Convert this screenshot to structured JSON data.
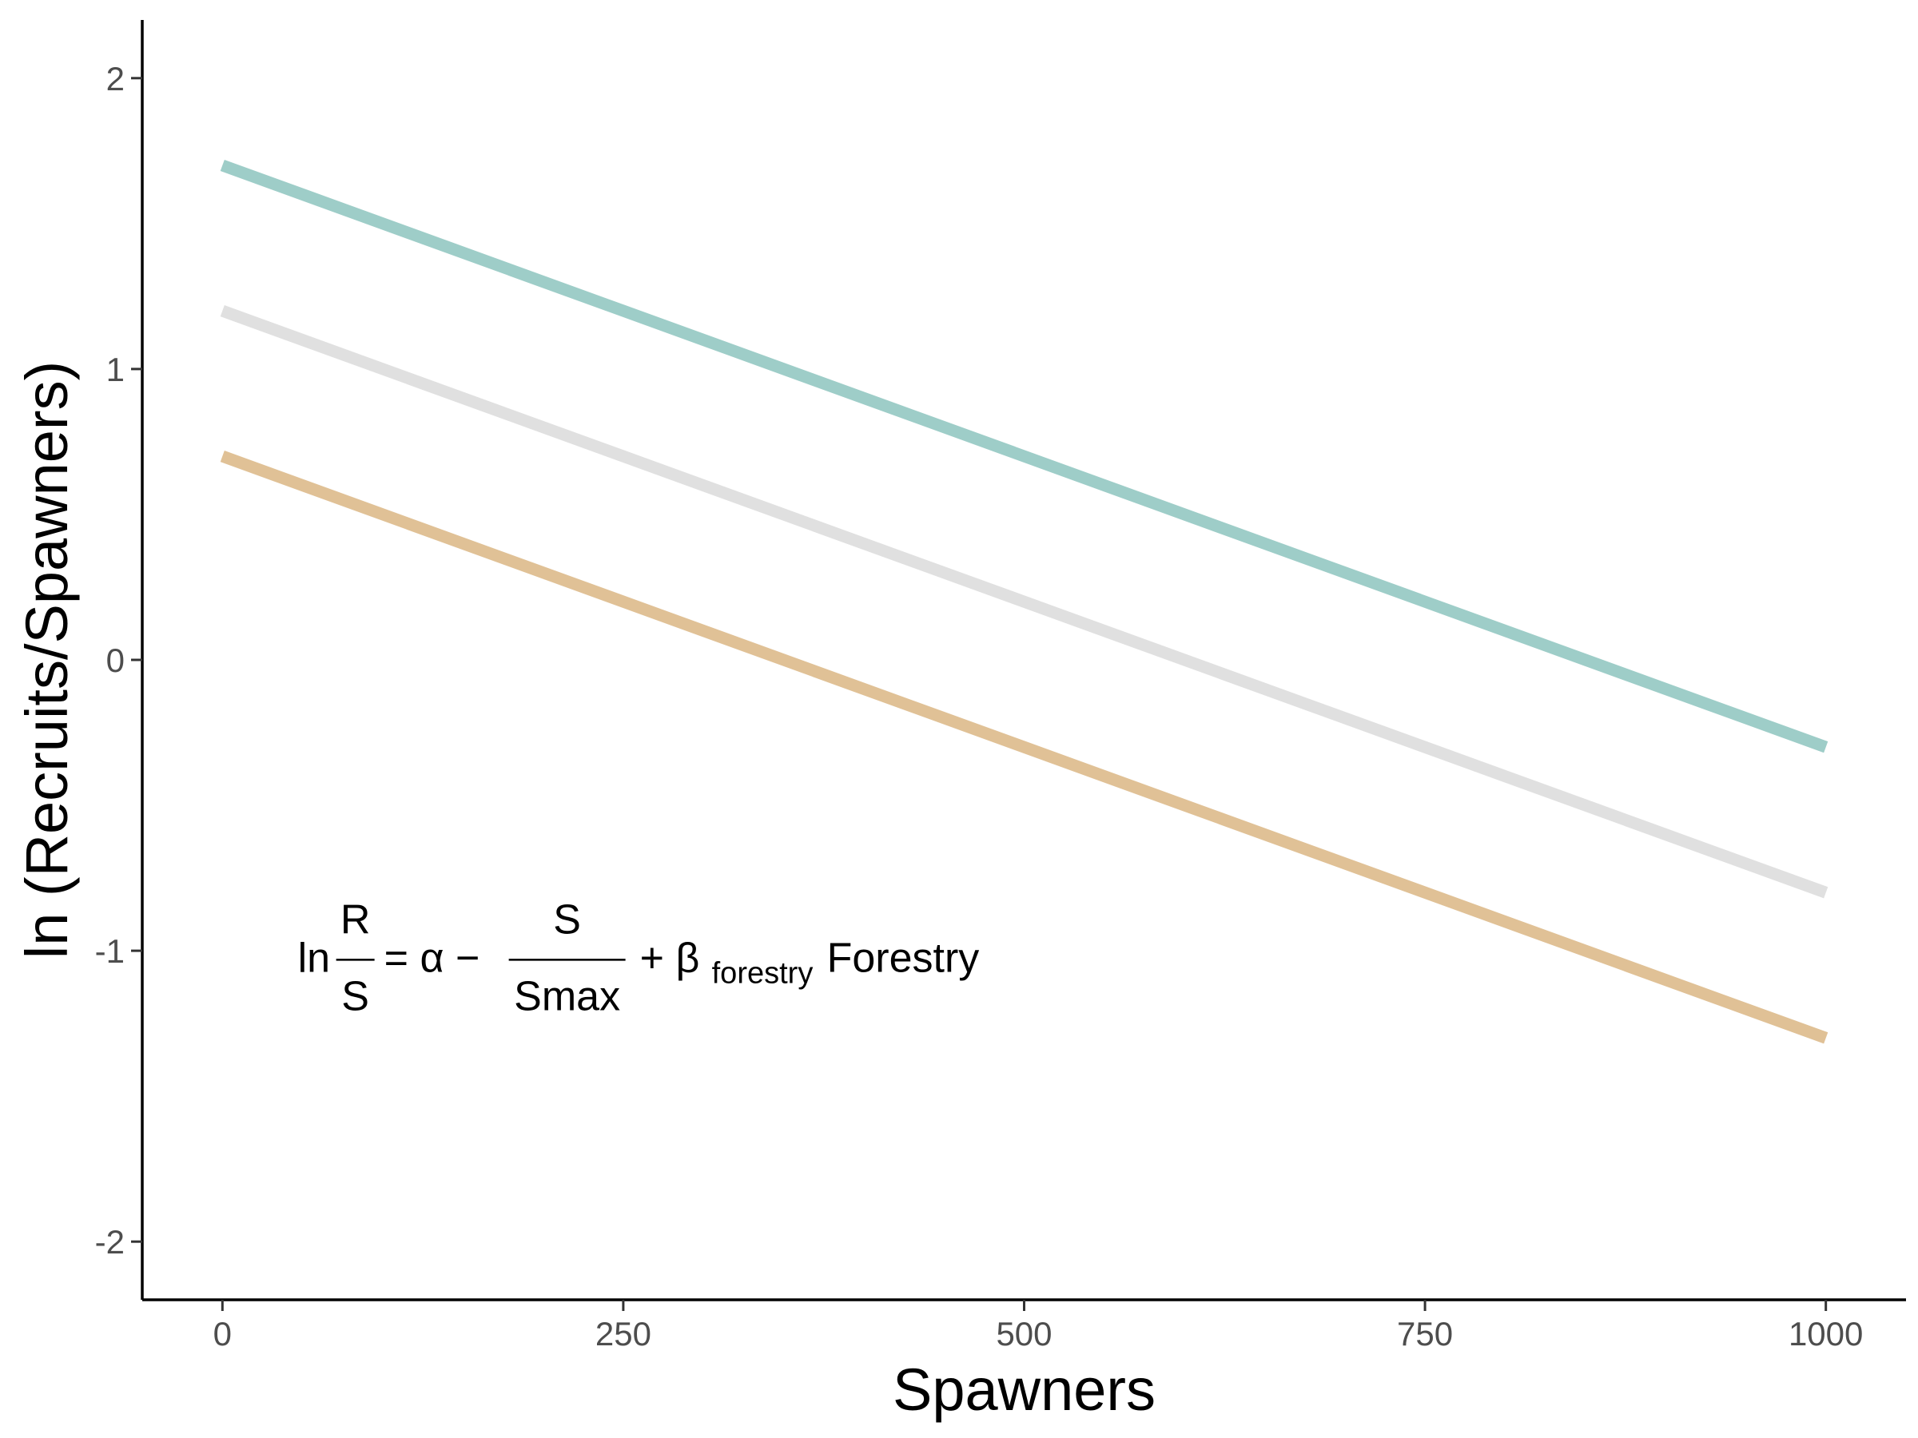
{
  "chart_data": {
    "type": "line",
    "xlabel": "Spawners",
    "ylabel": "ln (Recruits/Spawners)",
    "xlim": [
      -50,
      1050
    ],
    "ylim": [
      -2.2,
      2.2
    ],
    "x_ticks": [
      0,
      250,
      500,
      750,
      1000
    ],
    "y_ticks": [
      -2,
      -1,
      0,
      1,
      2
    ],
    "x_tick_labels": [
      "0",
      "250",
      "500",
      "750",
      "1000"
    ],
    "y_tick_labels": [
      "-2",
      "-1",
      "0",
      "1",
      "2"
    ],
    "grid": false,
    "series": [
      {
        "color": "#9ecdc8",
        "x": [
          0,
          1000
        ],
        "y": [
          1.7,
          -0.3
        ]
      },
      {
        "color": "#e0e0e0",
        "x": [
          0,
          1000
        ],
        "y": [
          1.2,
          -0.8
        ]
      },
      {
        "color": "#e0c196",
        "x": [
          0,
          1000
        ],
        "y": [
          0.7,
          -1.3
        ]
      }
    ],
    "annotation": {
      "ln": "ln",
      "frac1_num": "R",
      "frac1_den": "S",
      "middle": "= α −",
      "frac2_num": "S",
      "frac2_den": "Smax",
      "plus_beta": "+ β",
      "beta_sub": "forestry",
      "tail": "Forestry",
      "anchor_x": 50,
      "anchor_y": -1.02
    }
  }
}
